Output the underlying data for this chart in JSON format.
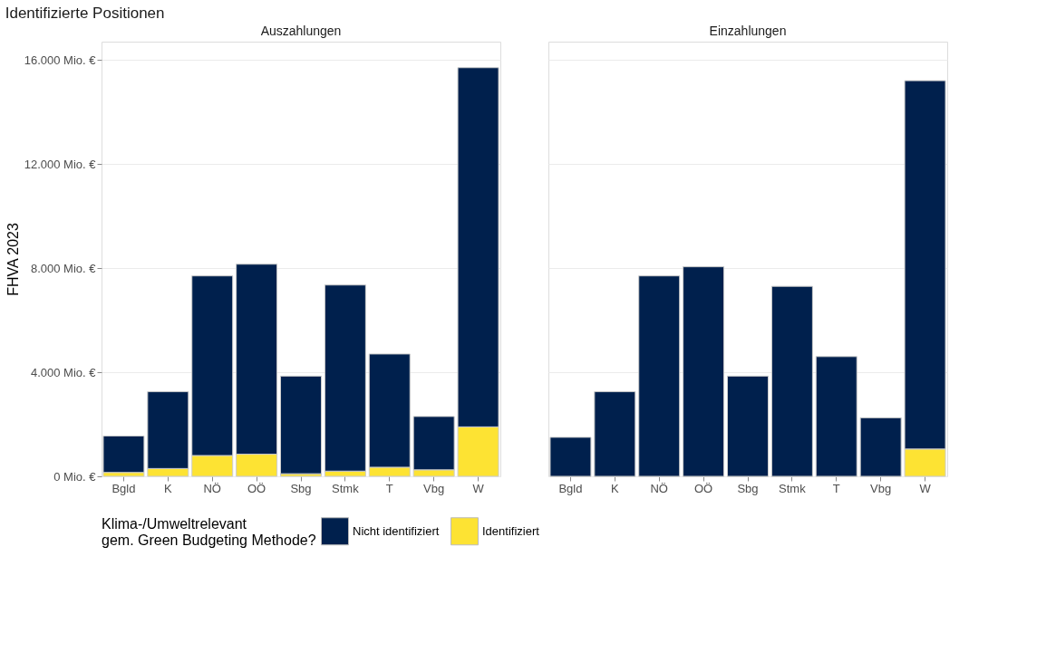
{
  "chart_data": [
    {
      "type": "bar",
      "title": "Identifizierte Positionen",
      "subtitle": "Auszahlungen",
      "ylabel": "FHVA 2023",
      "legend_title": "Klima-/Umweltrelevant\ngem. Green Budgeting Methode?",
      "legend": "bottom",
      "stacked": true,
      "grid": "y",
      "categories": [
        "Bgld",
        "K",
        "NÖ",
        "OÖ",
        "Sbg",
        "Stmk",
        "T",
        "Vbg",
        "W"
      ],
      "ylim": [
        0,
        16700
      ],
      "yticks": [
        {
          "value": 0,
          "label": "0 Mio. €"
        },
        {
          "value": 4000,
          "label": "4.000 Mio. €"
        },
        {
          "value": 8000,
          "label": "8.000 Mio. €"
        },
        {
          "value": 12000,
          "label": "12.000 Mio. €"
        },
        {
          "value": 16000,
          "label": "16.000 Mio. €"
        }
      ],
      "series": [
        {
          "name": "Identifiziert",
          "color": "#fde333",
          "values": [
            150,
            300,
            800,
            850,
            100,
            200,
            350,
            250,
            1900
          ]
        },
        {
          "name": "Nicht identifiziert",
          "color": "#00204d",
          "values": [
            1400,
            2950,
            6900,
            7300,
            3750,
            7150,
            4350,
            2050,
            13800
          ]
        }
      ]
    },
    {
      "type": "bar",
      "subtitle": "Einzahlungen",
      "stacked": true,
      "grid": "y",
      "tick_labels": "x",
      "categories": [
        "Bgld",
        "K",
        "NÖ",
        "OÖ",
        "Sbg",
        "Stmk",
        "T",
        "Vbg",
        "W"
      ],
      "ylim": [
        0,
        16700
      ],
      "yticks": [
        0,
        4000,
        8000,
        12000,
        16000
      ],
      "series": [
        {
          "color": "#fde333",
          "values": [
            0,
            0,
            0,
            0,
            0,
            0,
            0,
            0,
            1050
          ]
        },
        {
          "color": "#00204d",
          "values": [
            1500,
            3250,
            7700,
            8050,
            3850,
            7300,
            4600,
            2250,
            14150
          ]
        }
      ]
    }
  ]
}
